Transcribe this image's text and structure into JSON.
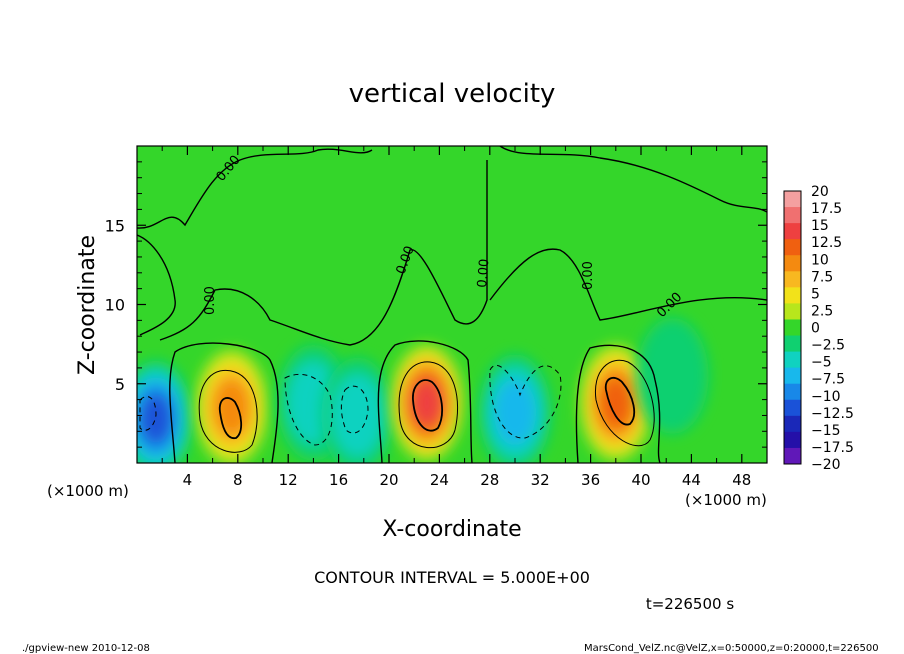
{
  "chart_data": {
    "type": "heatmap",
    "title": "vertical velocity",
    "xlabel": "X-coordinate",
    "ylabel": "Z-coordinate",
    "x_unit": "(×1000 m)",
    "x_unit_lower": "(×1000 m)",
    "xlim": [
      0,
      50
    ],
    "ylim": [
      0,
      20
    ],
    "x_ticks": [
      "4",
      "8",
      "12",
      "16",
      "20",
      "24",
      "28",
      "32",
      "36",
      "40",
      "44",
      "48"
    ],
    "y_ticks": [
      "5",
      "10",
      "15"
    ],
    "colorbar": {
      "labels": [
        "20",
        "17.5",
        "15",
        "12.5",
        "10",
        "7.5",
        "5",
        "2.5",
        "0",
        "−2.5",
        "−5",
        "−7.5",
        "−10",
        "−12.5",
        "−15",
        "−17.5",
        "−20"
      ],
      "colors": [
        "#f4a0a0",
        "#f07070",
        "#ee4040",
        "#f06010",
        "#f48a10",
        "#f8b820",
        "#f2e21a",
        "#b8e61c",
        "#34d62a",
        "#10d070",
        "#10d2c0",
        "#18b8ec",
        "#1888e8",
        "#1a52d8",
        "#1a28b8",
        "#2410a8",
        "#6018b8"
      ]
    },
    "cells": [
      {
        "x": 1.5,
        "z": 2.8,
        "value": -12
      },
      {
        "x": 7.5,
        "z": 3.5,
        "value": 10
      },
      {
        "x": 14.0,
        "z": 3.8,
        "value": -5
      },
      {
        "x": 17.5,
        "z": 3.0,
        "value": -6
      },
      {
        "x": 23.0,
        "z": 3.8,
        "value": 14
      },
      {
        "x": 30.0,
        "z": 3.2,
        "value": -7
      },
      {
        "x": 38.0,
        "z": 3.8,
        "value": 12
      },
      {
        "x": 42.5,
        "z": 5.5,
        "value": -3
      }
    ],
    "contour_labels": [
      "0.00",
      "0.00",
      "0.00",
      "0.00",
      "0.00",
      "0.00"
    ],
    "contour_interval": "CONTOUR INTERVAL = 5.000E+00",
    "time_label": "t=226500 s"
  },
  "footer": {
    "left": "./gpview-new   2010-12-08",
    "right": "MarsCond_VelZ.nc@VelZ,x=0:50000,z=0:20000,t=226500"
  }
}
